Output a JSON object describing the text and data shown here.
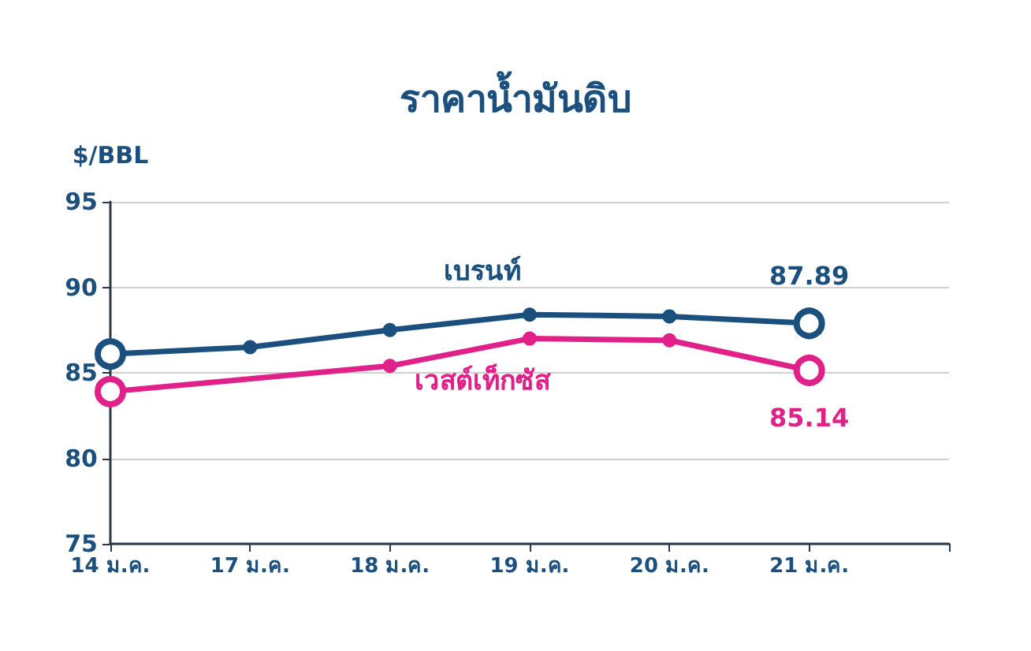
{
  "chart_data": {
    "type": "line",
    "title": "ราคาน้ำมันดิบ",
    "ylabel": "$/BBL",
    "categories": [
      "14 ม.ค.",
      "17 ม.ค.",
      "18 ม.ค.",
      "19 ม.ค.",
      "20 ม.ค.",
      "21 ม.ค.",
      null
    ],
    "series": [
      {
        "name": "เบรนท์",
        "color": "#1b4f7e",
        "values": [
          86.1,
          86.5,
          87.5,
          88.4,
          88.3,
          87.89,
          null
        ],
        "value_labels": [
          null,
          null,
          null,
          null,
          null,
          "87.89",
          null
        ]
      },
      {
        "name": "เวสต์เท็กซัส",
        "color": "#e0218a",
        "values": [
          83.9,
          null,
          85.4,
          87.0,
          86.9,
          85.14,
          null
        ],
        "value_labels": [
          null,
          null,
          null,
          null,
          null,
          "85.14",
          null
        ]
      }
    ],
    "ylim": [
      75,
      95
    ],
    "yticks": [
      75,
      80,
      85,
      90,
      95
    ],
    "grid": "y",
    "legend": false,
    "marker": "circle",
    "line_style": "solid"
  }
}
